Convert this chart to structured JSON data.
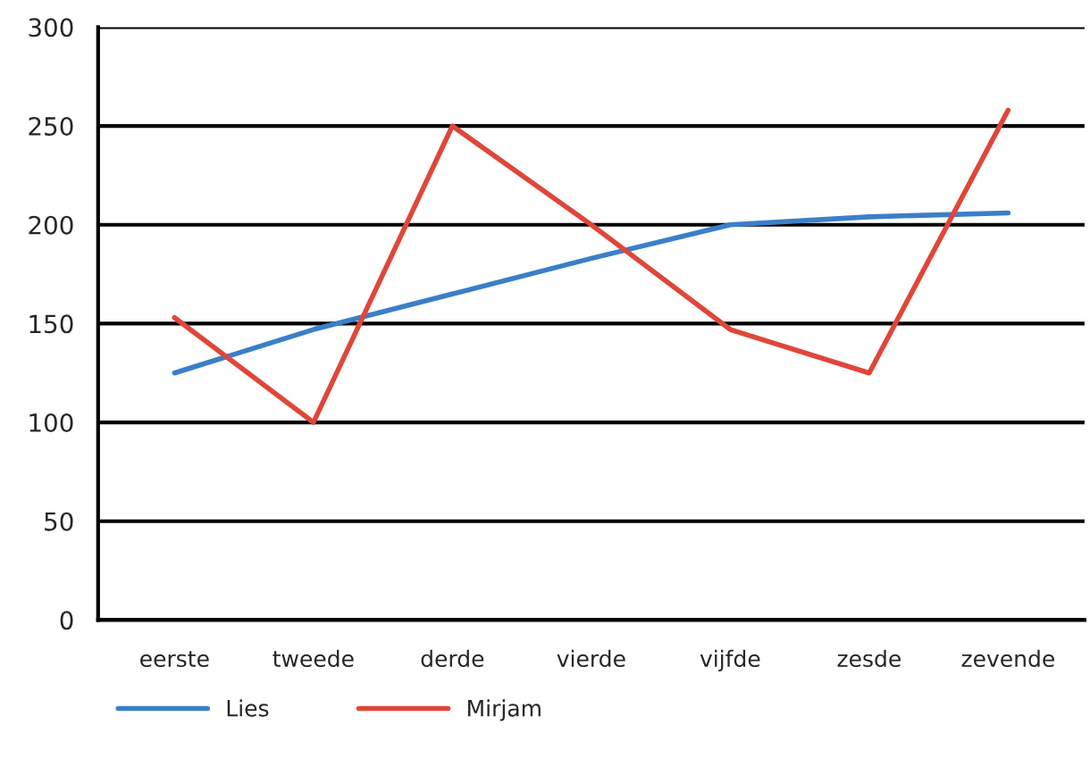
{
  "chart_data": {
    "type": "line",
    "categories": [
      "eerste",
      "tweede",
      "derde",
      "vierde",
      "vijfde",
      "zesde",
      "zevende"
    ],
    "series": [
      {
        "name": "Lies",
        "color": "#3a7fc8",
        "values": [
          125,
          147,
          165,
          183,
          200,
          204,
          206
        ]
      },
      {
        "name": "Mirjam",
        "color": "#e0463a",
        "values": [
          153,
          100,
          250,
          200,
          147,
          125,
          258
        ]
      }
    ],
    "ylim": [
      0,
      300
    ],
    "yticks": [
      0,
      50,
      100,
      150,
      200,
      250,
      300
    ],
    "grid": "y",
    "legend": "bottom",
    "marker": "none",
    "line_style": "solid"
  }
}
